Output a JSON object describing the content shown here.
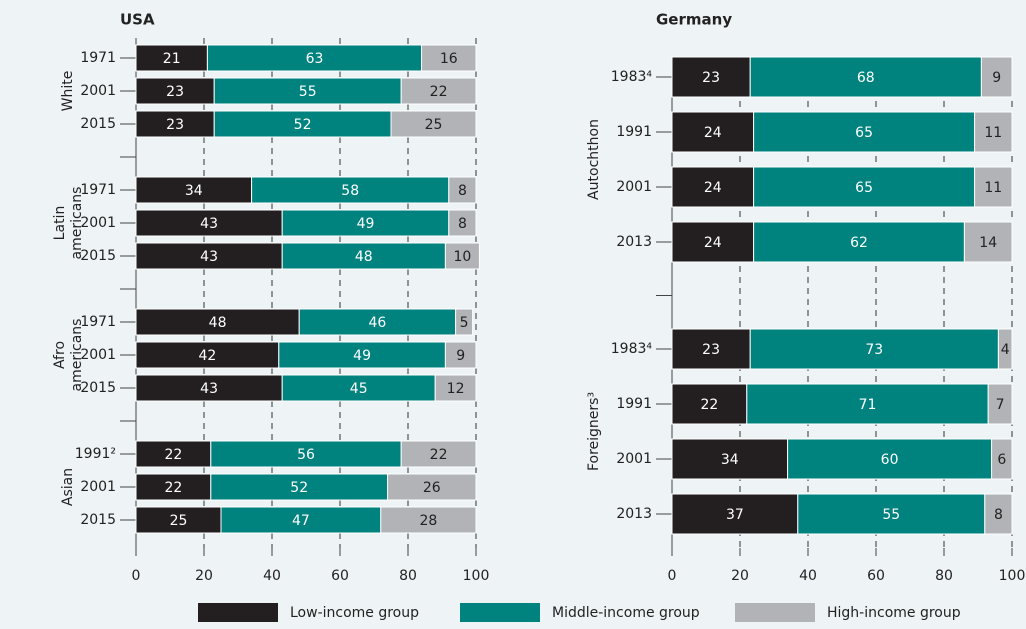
{
  "chart_data": [
    {
      "type": "bar",
      "orientation": "horizontal",
      "stacked": true,
      "title": "USA",
      "groups": [
        {
          "name": "White",
          "categories": [
            "1971",
            "2001",
            "2015"
          ]
        },
        {
          "name": "Latin americans",
          "categories": [
            "1971",
            "2001",
            "2015"
          ]
        },
        {
          "name": "Afro americans",
          "categories": [
            "1971",
            "2001",
            "2015"
          ]
        },
        {
          "name": "Asian",
          "categories": [
            "1991²",
            "2001",
            "2015"
          ]
        }
      ],
      "series": [
        {
          "values": [
            21,
            23,
            23,
            34,
            43,
            43,
            48,
            42,
            43,
            22,
            22,
            25
          ]
        },
        {
          "values": [
            63,
            55,
            52,
            58,
            49,
            48,
            46,
            49,
            45,
            56,
            52,
            47
          ]
        },
        {
          "values": [
            16,
            22,
            25,
            8,
            8,
            10,
            5,
            9,
            12,
            22,
            26,
            28
          ]
        }
      ],
      "xlim": [
        0,
        100
      ],
      "xticks": [
        0,
        20,
        40,
        60,
        80,
        100
      ],
      "grid": true
    },
    {
      "type": "bar",
      "orientation": "horizontal",
      "stacked": true,
      "title": "Germany",
      "groups": [
        {
          "name": "Autochthon",
          "categories": [
            "1983⁴",
            "1991",
            "2001",
            "2013"
          ]
        },
        {
          "name": "Foreigners³",
          "categories": [
            "1983⁴",
            "1991",
            "2001",
            "2013"
          ]
        }
      ],
      "series": [
        {
          "values": [
            23,
            24,
            24,
            24,
            23,
            22,
            34,
            37
          ]
        },
        {
          "values": [
            68,
            65,
            65,
            62,
            73,
            71,
            60,
            55
          ]
        },
        {
          "values": [
            9,
            11,
            11,
            14,
            4,
            7,
            6,
            8
          ]
        }
      ],
      "xlim": [
        0,
        100
      ],
      "xticks": [
        0,
        20,
        40,
        60,
        80,
        100
      ],
      "grid": true
    }
  ],
  "legend": [
    {
      "name": "Low-income group",
      "color": "#231f20"
    },
    {
      "name": "Middle-income group",
      "color": "#00837f"
    },
    {
      "name": "High-income group",
      "color": "#b1b3b6"
    }
  ]
}
